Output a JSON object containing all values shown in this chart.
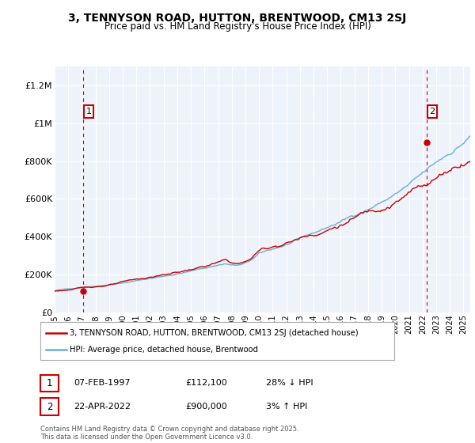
{
  "title": "3, TENNYSON ROAD, HUTTON, BRENTWOOD, CM13 2SJ",
  "subtitle": "Price paid vs. HM Land Registry's House Price Index (HPI)",
  "ylabel_ticks": [
    "£0",
    "£200K",
    "£400K",
    "£600K",
    "£800K",
    "£1M",
    "£1.2M"
  ],
  "ytick_values": [
    0,
    200000,
    400000,
    600000,
    800000,
    1000000,
    1200000
  ],
  "ylim": [
    0,
    1300000
  ],
  "xlim_start": 1995.0,
  "xlim_end": 2025.5,
  "sale1_date": 1997.1,
  "sale1_price": 112100,
  "sale2_date": 2022.3,
  "sale2_price": 900000,
  "hpi_color": "#6aaed6",
  "price_color": "#cc0000",
  "vline_color": "#cc0000",
  "bg_plot": "#eef2fa",
  "grid_color": "#ffffff",
  "legend_label_price": "3, TENNYSON ROAD, HUTTON, BRENTWOOD, CM13 2SJ (detached house)",
  "legend_label_hpi": "HPI: Average price, detached house, Brentwood",
  "annotation1_label": "1",
  "annotation1_date": "07-FEB-1997",
  "annotation1_price": "£112,100",
  "annotation1_hpi": "28% ↓ HPI",
  "annotation2_label": "2",
  "annotation2_date": "22-APR-2022",
  "annotation2_price": "£900,000",
  "annotation2_hpi": "3% ↑ HPI",
  "footer": "Contains HM Land Registry data © Crown copyright and database right 2025.\nThis data is licensed under the Open Government Licence v3.0.",
  "num_points": 366
}
